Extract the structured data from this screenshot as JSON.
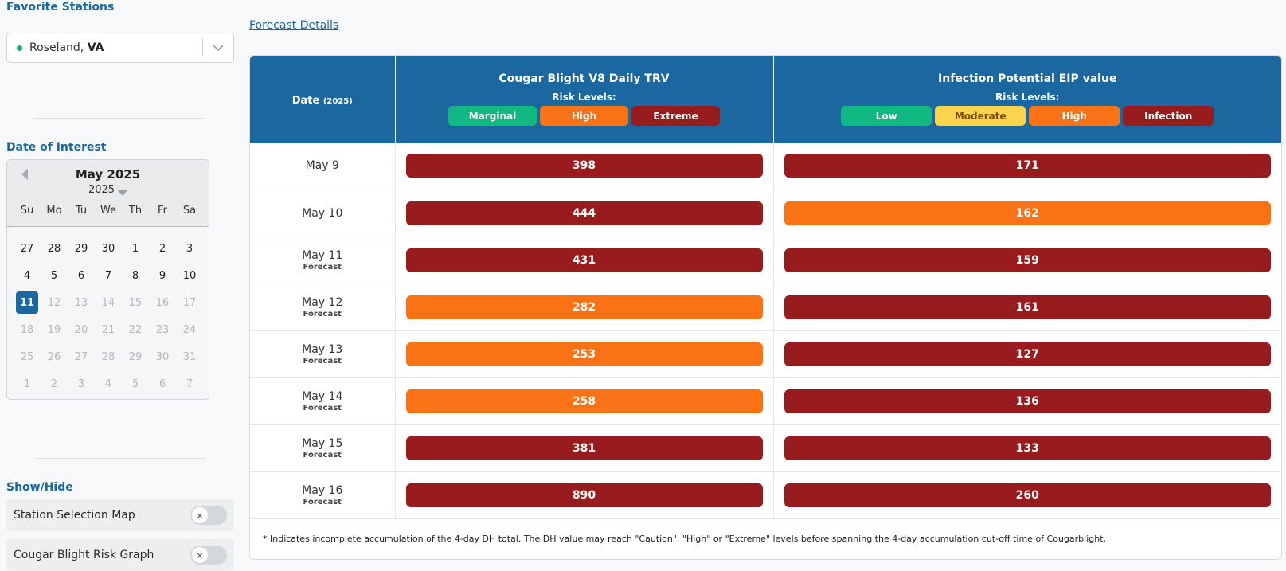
{
  "colors": {
    "extreme": "#981b1e",
    "high": "#f97316",
    "marginal": "#10b981",
    "low": "#10b981",
    "moderate": "#fcd34d",
    "infection": "#981b1e",
    "primary": "#1b67a0"
  },
  "sidebar": {
    "favorite_title": "Favorite Stations",
    "station": {
      "name": "Roseland,",
      "state": "VA"
    },
    "date_title": "Date of Interest",
    "calendar": {
      "month_label": "May 2025",
      "year_label": "2025",
      "weekdays": [
        "Su",
        "Mo",
        "Tu",
        "We",
        "Th",
        "Fr",
        "Sa"
      ],
      "weeks": [
        [
          "27",
          "28",
          "29",
          "30",
          "1",
          "2",
          "3"
        ],
        [
          "4",
          "5",
          "6",
          "7",
          "8",
          "9",
          "10"
        ],
        [
          "11",
          "12",
          "13",
          "14",
          "15",
          "16",
          "17"
        ],
        [
          "18",
          "19",
          "20",
          "21",
          "22",
          "23",
          "24"
        ],
        [
          "25",
          "26",
          "27",
          "28",
          "29",
          "30",
          "31"
        ],
        [
          "1",
          "2",
          "3",
          "4",
          "5",
          "6",
          "7"
        ]
      ],
      "selected": "11"
    },
    "showhide_title": "Show/Hide",
    "toggles": [
      {
        "label": "Station Selection Map",
        "knob": "×"
      },
      {
        "label": "Cougar Blight Risk Graph",
        "knob": "×"
      }
    ]
  },
  "main": {
    "forecast_link": "Forecast Details",
    "header": {
      "date": "Date",
      "date_year": "(2025)",
      "trv_title": "Cougar Blight V8 Daily TRV",
      "eip_title": "Infection Potential EIP value",
      "risk_levels": "Risk Levels:",
      "trv_levels": [
        "Marginal",
        "High",
        "Extreme"
      ],
      "eip_levels": [
        "Low",
        "Moderate",
        "High",
        "Infection"
      ]
    },
    "rows": [
      {
        "date": "May 9",
        "sub": "",
        "trv": "398",
        "trv_level": "extreme",
        "eip": "171",
        "eip_level": "infection"
      },
      {
        "date": "May 10",
        "sub": "",
        "trv": "444",
        "trv_level": "extreme",
        "eip": "162",
        "eip_level": "high"
      },
      {
        "date": "May 11",
        "sub": "Forecast",
        "trv": "431",
        "trv_level": "extreme",
        "eip": "159",
        "eip_level": "infection"
      },
      {
        "date": "May 12",
        "sub": "Forecast",
        "trv": "282",
        "trv_level": "high",
        "eip": "161",
        "eip_level": "infection"
      },
      {
        "date": "May 13",
        "sub": "Forecast",
        "trv": "253",
        "trv_level": "high",
        "eip": "127",
        "eip_level": "infection"
      },
      {
        "date": "May 14",
        "sub": "Forecast",
        "trv": "258",
        "trv_level": "high",
        "eip": "136",
        "eip_level": "infection"
      },
      {
        "date": "May 15",
        "sub": "Forecast",
        "trv": "381",
        "trv_level": "extreme",
        "eip": "133",
        "eip_level": "infection"
      },
      {
        "date": "May 16",
        "sub": "Forecast",
        "trv": "890",
        "trv_level": "extreme",
        "eip": "260",
        "eip_level": "infection"
      }
    ],
    "note": "* Indicates incomplete accumulation of the 4-day DH total. The DH value may reach \"Caution\", \"High\" or \"Extreme\" levels before spanning the 4-day accumulation cut-off time of Cougarblight."
  }
}
